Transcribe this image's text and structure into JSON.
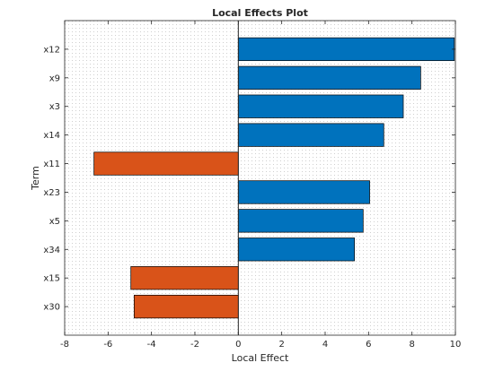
{
  "chart_data": {
    "type": "bar",
    "orientation": "horizontal",
    "title": "Local Effects Plot",
    "xlabel": "Local Effect",
    "ylabel": "Term",
    "xlim": [
      -8,
      10
    ],
    "xticks": [
      -8,
      -6,
      -4,
      -2,
      0,
      2,
      4,
      6,
      8,
      10
    ],
    "categories": [
      "x12",
      "x9",
      "x3",
      "x14",
      "x11",
      "x23",
      "x5",
      "x34",
      "x15",
      "x30"
    ],
    "values": [
      9.95,
      8.4,
      7.6,
      6.7,
      -6.65,
      6.05,
      5.75,
      5.35,
      -4.95,
      -4.8
    ],
    "colors": {
      "positive": "#0072BD",
      "negative": "#D95319",
      "grid_dots": "#cfcfcf",
      "axis": "#262626"
    },
    "grid": "dotted",
    "legend": "none"
  }
}
